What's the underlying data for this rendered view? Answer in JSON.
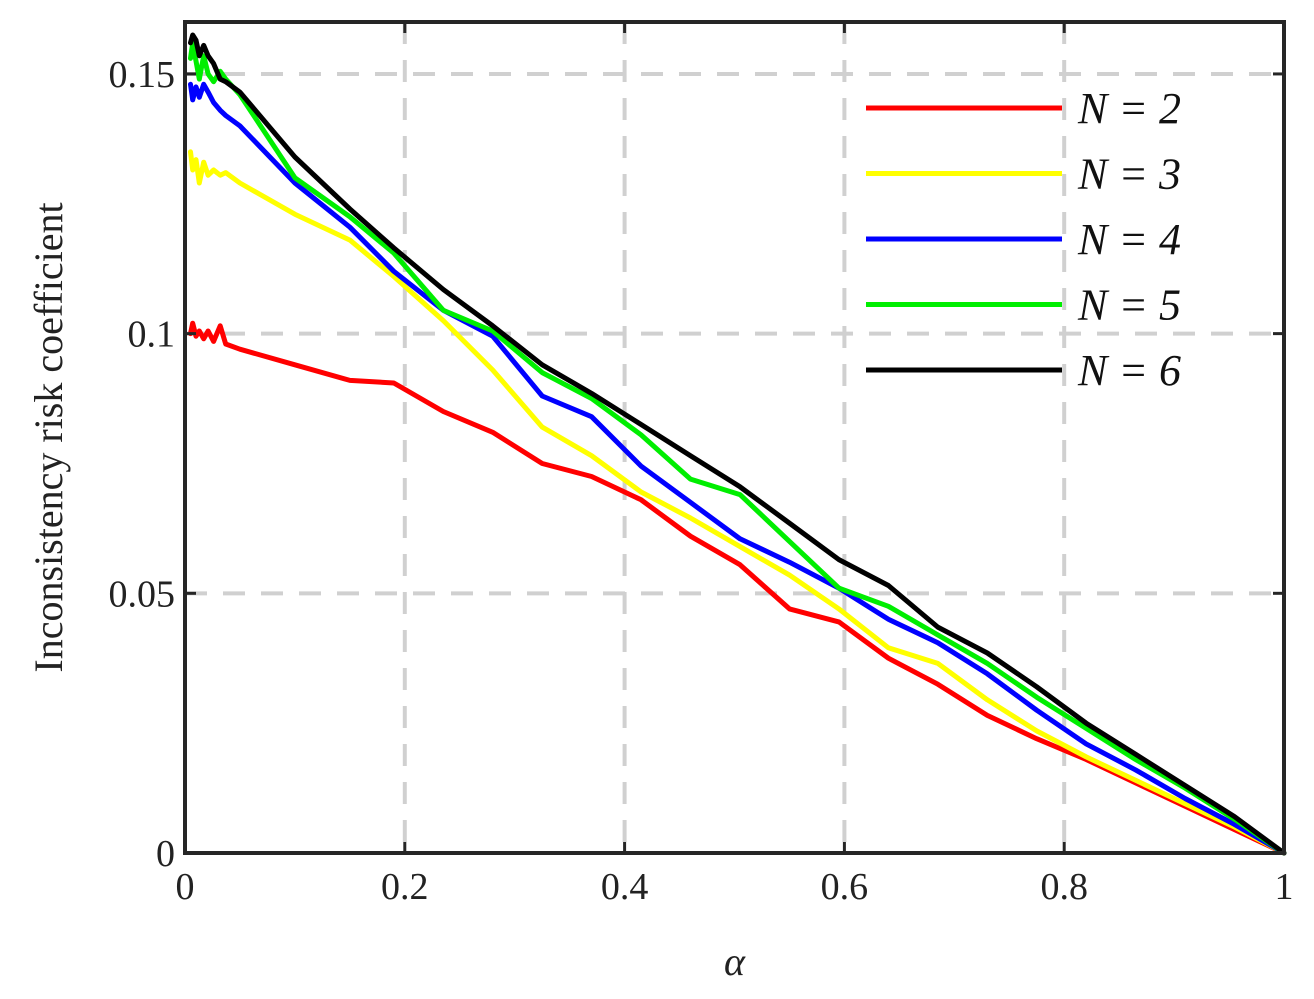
{
  "chart_data": {
    "type": "line",
    "title": "",
    "xlabel": "α",
    "ylabel": "Inconsistency risk coefficient",
    "xlim": [
      0,
      1
    ],
    "ylim": [
      0,
      0.16
    ],
    "xticks": [
      0,
      0.2,
      0.4,
      0.6,
      0.8,
      1
    ],
    "xtick_labels": [
      "0",
      "0.2",
      "0.4",
      "0.6",
      "0.8",
      "1"
    ],
    "yticks": [
      0,
      0.05,
      0.1,
      0.15
    ],
    "ytick_labels": [
      "0",
      "0.05",
      "0.1",
      "0.15"
    ],
    "grid": true,
    "legend_position": "top-right",
    "series": [
      {
        "name": "N = 2",
        "color": "#ff0000",
        "x": [
          0.005,
          0.007,
          0.01,
          0.013,
          0.017,
          0.021,
          0.026,
          0.032,
          0.037,
          0.05,
          0.1,
          0.15,
          0.19,
          0.235,
          0.28,
          0.325,
          0.37,
          0.415,
          0.46,
          0.505,
          0.55,
          0.595,
          0.64,
          0.685,
          0.73,
          0.775,
          0.82,
          0.865,
          0.91,
          0.955,
          1.0
        ],
        "y": [
          0.1,
          0.102,
          0.0995,
          0.1005,
          0.099,
          0.1005,
          0.0985,
          0.1015,
          0.098,
          0.097,
          0.094,
          0.091,
          0.0905,
          0.085,
          0.081,
          0.075,
          0.0725,
          0.068,
          0.061,
          0.0555,
          0.047,
          0.0445,
          0.0375,
          0.0325,
          0.0265,
          0.022,
          0.018,
          0.0135,
          0.009,
          0.0045,
          0.0
        ]
      },
      {
        "name": "N = 3",
        "color": "#ffff00",
        "x": [
          0.005,
          0.007,
          0.01,
          0.013,
          0.017,
          0.021,
          0.026,
          0.032,
          0.037,
          0.05,
          0.1,
          0.15,
          0.19,
          0.235,
          0.28,
          0.325,
          0.37,
          0.415,
          0.46,
          0.505,
          0.55,
          0.595,
          0.64,
          0.685,
          0.73,
          0.775,
          0.82,
          0.865,
          0.91,
          0.955,
          1.0
        ],
        "y": [
          0.135,
          0.1315,
          0.1335,
          0.129,
          0.133,
          0.1305,
          0.1315,
          0.1305,
          0.131,
          0.129,
          0.123,
          0.118,
          0.111,
          0.1025,
          0.093,
          0.082,
          0.0765,
          0.0695,
          0.0645,
          0.059,
          0.0535,
          0.047,
          0.0395,
          0.0365,
          0.0295,
          0.0235,
          0.0185,
          0.014,
          0.0095,
          0.005,
          0.0
        ]
      },
      {
        "name": "N = 4",
        "color": "#0000ff",
        "x": [
          0.005,
          0.007,
          0.01,
          0.013,
          0.017,
          0.021,
          0.026,
          0.032,
          0.037,
          0.05,
          0.1,
          0.15,
          0.19,
          0.235,
          0.28,
          0.325,
          0.37,
          0.415,
          0.46,
          0.505,
          0.55,
          0.595,
          0.64,
          0.685,
          0.73,
          0.775,
          0.82,
          0.865,
          0.91,
          0.955,
          1.0
        ],
        "y": [
          0.148,
          0.145,
          0.1475,
          0.1455,
          0.148,
          0.1465,
          0.1445,
          0.143,
          0.142,
          0.14,
          0.129,
          0.1205,
          0.112,
          0.1045,
          0.0995,
          0.088,
          0.084,
          0.0745,
          0.0675,
          0.0605,
          0.056,
          0.051,
          0.045,
          0.0405,
          0.0345,
          0.0275,
          0.021,
          0.016,
          0.0105,
          0.0055,
          0.0
        ]
      },
      {
        "name": "N = 5",
        "color": "#00ee00",
        "x": [
          0.005,
          0.007,
          0.01,
          0.013,
          0.017,
          0.021,
          0.026,
          0.032,
          0.037,
          0.05,
          0.1,
          0.15,
          0.19,
          0.235,
          0.28,
          0.325,
          0.37,
          0.415,
          0.46,
          0.505,
          0.55,
          0.595,
          0.64,
          0.685,
          0.73,
          0.775,
          0.82,
          0.865,
          0.91,
          0.955,
          1.0
        ],
        "y": [
          0.153,
          0.156,
          0.1525,
          0.149,
          0.1535,
          0.15,
          0.1485,
          0.1505,
          0.149,
          0.146,
          0.13,
          0.1225,
          0.1155,
          0.1045,
          0.1005,
          0.0925,
          0.0875,
          0.0805,
          0.072,
          0.069,
          0.06,
          0.051,
          0.0475,
          0.042,
          0.0365,
          0.03,
          0.024,
          0.018,
          0.0125,
          0.0065,
          0.0
        ]
      },
      {
        "name": "N = 6",
        "color": "#000000",
        "x": [
          0.005,
          0.007,
          0.01,
          0.013,
          0.017,
          0.021,
          0.026,
          0.032,
          0.037,
          0.05,
          0.1,
          0.15,
          0.19,
          0.235,
          0.28,
          0.325,
          0.37,
          0.415,
          0.46,
          0.505,
          0.55,
          0.595,
          0.64,
          0.685,
          0.73,
          0.775,
          0.82,
          0.865,
          0.91,
          0.955,
          1.0
        ],
        "y": [
          0.156,
          0.1575,
          0.1565,
          0.1535,
          0.1555,
          0.1535,
          0.152,
          0.149,
          0.1485,
          0.1465,
          0.134,
          0.124,
          0.1165,
          0.1085,
          0.1015,
          0.094,
          0.0885,
          0.0825,
          0.0765,
          0.0705,
          0.0635,
          0.0565,
          0.0515,
          0.0435,
          0.0385,
          0.032,
          0.025,
          0.019,
          0.013,
          0.007,
          0.0
        ]
      }
    ]
  }
}
